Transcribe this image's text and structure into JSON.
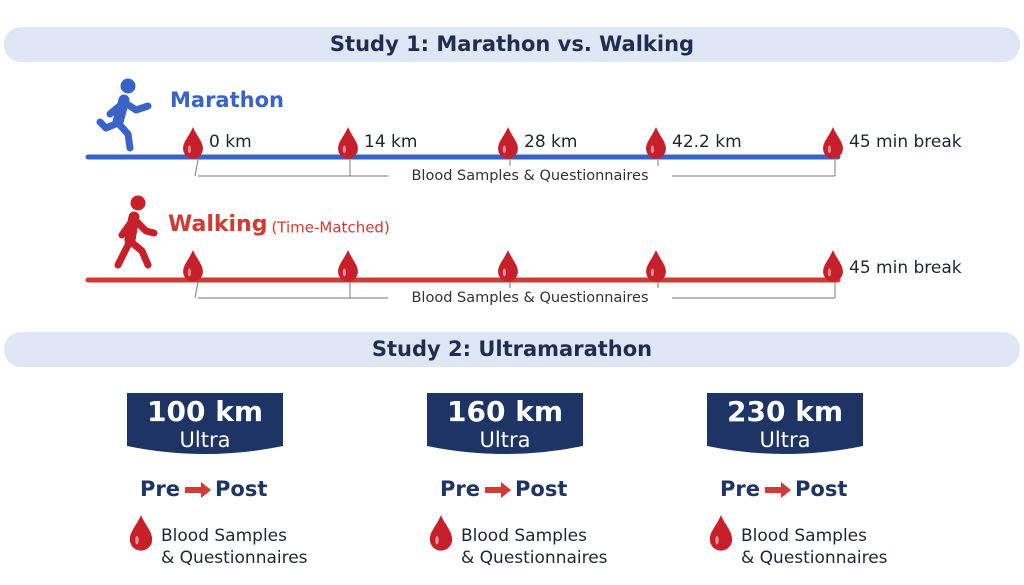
{
  "study1": {
    "title": "Study 1: Marathon vs. Walking",
    "marathon": {
      "label": "Marathon",
      "points": [
        "0 km",
        "14 km",
        "28 km",
        "42.2 km",
        "45 min break"
      ],
      "bracket": "Blood Samples & Questionnaires"
    },
    "walking": {
      "label": "Walking",
      "note": "(Time-Matched)",
      "end": "45 min break",
      "bracket": "Blood Samples & Questionnaires"
    }
  },
  "study2": {
    "title": "Study 2: Ultramarathon",
    "groups": [
      {
        "distance": "100 km",
        "type": "Ultra",
        "pre": "Pre",
        "post": "Post",
        "samples_line1": "Blood Samples",
        "samples_line2": "& Questionnaires"
      },
      {
        "distance": "160 km",
        "type": "Ultra",
        "pre": "Pre",
        "post": "Post",
        "samples_line1": "Blood Samples",
        "samples_line2": "& Questionnaires"
      },
      {
        "distance": "230 km",
        "type": "Ultra",
        "pre": "Pre",
        "post": "Post",
        "samples_line1": "Blood Samples",
        "samples_line2": "& Questionnaires"
      }
    ]
  }
}
